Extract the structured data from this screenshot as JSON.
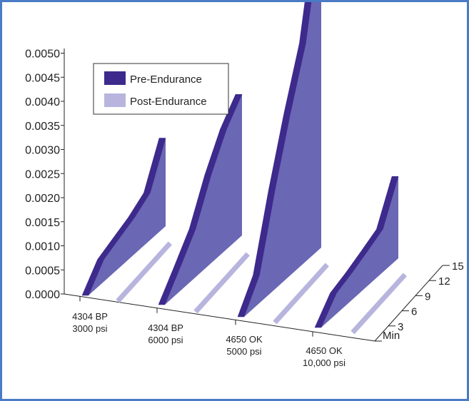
{
  "chart_data": {
    "type": "3d-line",
    "title": "",
    "xlabel": "",
    "ylabel": "",
    "ylim": [
      0,
      0.0053
    ],
    "y_ticks": [
      "0.0000",
      "0.0005",
      "0.0010",
      "0.0015",
      "0.0020",
      "0.0025",
      "0.0030",
      "0.0035",
      "0.0040",
      "0.0045",
      "0.0050"
    ],
    "categories": [
      {
        "line1": "4304 BP",
        "line2": "3000 psi"
      },
      {
        "line1": "4304 BP",
        "line2": "6000 psi"
      },
      {
        "line1": "4650 OK",
        "line2": "5000 psi"
      },
      {
        "line1": "4650 OK",
        "line2": "10,000 psi"
      }
    ],
    "z_axis": {
      "label": "Min",
      "ticks": [
        "3",
        "6",
        "9",
        "12",
        "15"
      ]
    },
    "minutes": [
      0,
      3,
      6,
      9,
      12,
      15
    ],
    "series": [
      {
        "name": "Pre-Endurance",
        "color": "#3d2a8c",
        "face_color": "#6a67b4",
        "values": [
          [
            0,
            0.00046,
            0.00061,
            0.00076,
            0.00098,
            0.00183
          ],
          [
            0,
            0.00049,
            0.001,
            0.00183,
            0.00249,
            0.00293
          ],
          [
            0,
            0.00058,
            0.00205,
            0.00336,
            0.00453,
            0.00666
          ],
          [
            0,
            0.00043,
            0.00056,
            0.00072,
            0.00089,
            0.0017
          ]
        ]
      },
      {
        "name": "Post-Endurance",
        "color": "#b7b5de",
        "values": [
          [
            0,
            0,
            0,
            0,
            0,
            0
          ],
          [
            0,
            0,
            0,
            0,
            0,
            0
          ],
          [
            0,
            0,
            0,
            0,
            0,
            0
          ],
          [
            0,
            0,
            0,
            0,
            0,
            0
          ]
        ]
      }
    ],
    "legend": {
      "placement": "top-left",
      "entries": [
        "Pre-Endurance",
        "Post-Endurance"
      ]
    }
  }
}
